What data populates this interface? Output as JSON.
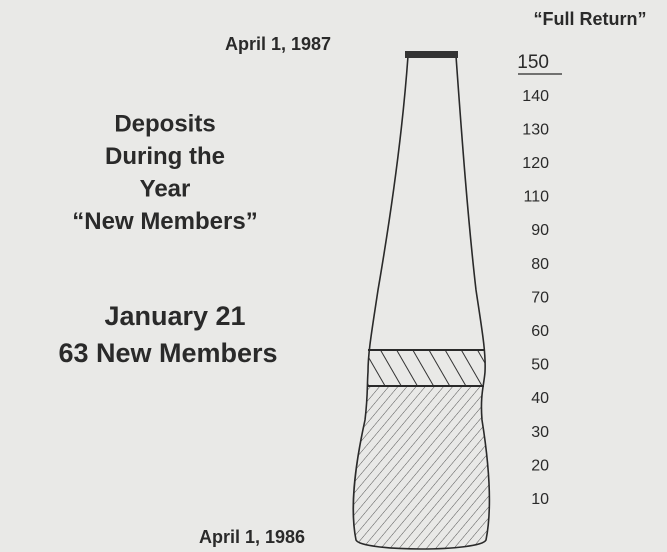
{
  "top_date": "April 1, 1987",
  "heading": [
    "Deposits",
    "During the",
    "Year",
    "“New Members”"
  ],
  "event": {
    "date": "January 21",
    "text": "63 New Members"
  },
  "bottom_date": "April 1, 1986",
  "scale": {
    "title": "“Full Return”",
    "labels": [
      "150",
      "140",
      "130",
      "120",
      "110",
      "90",
      "80",
      "70",
      "60",
      "50",
      "40",
      "30",
      "20",
      "10"
    ]
  }
}
